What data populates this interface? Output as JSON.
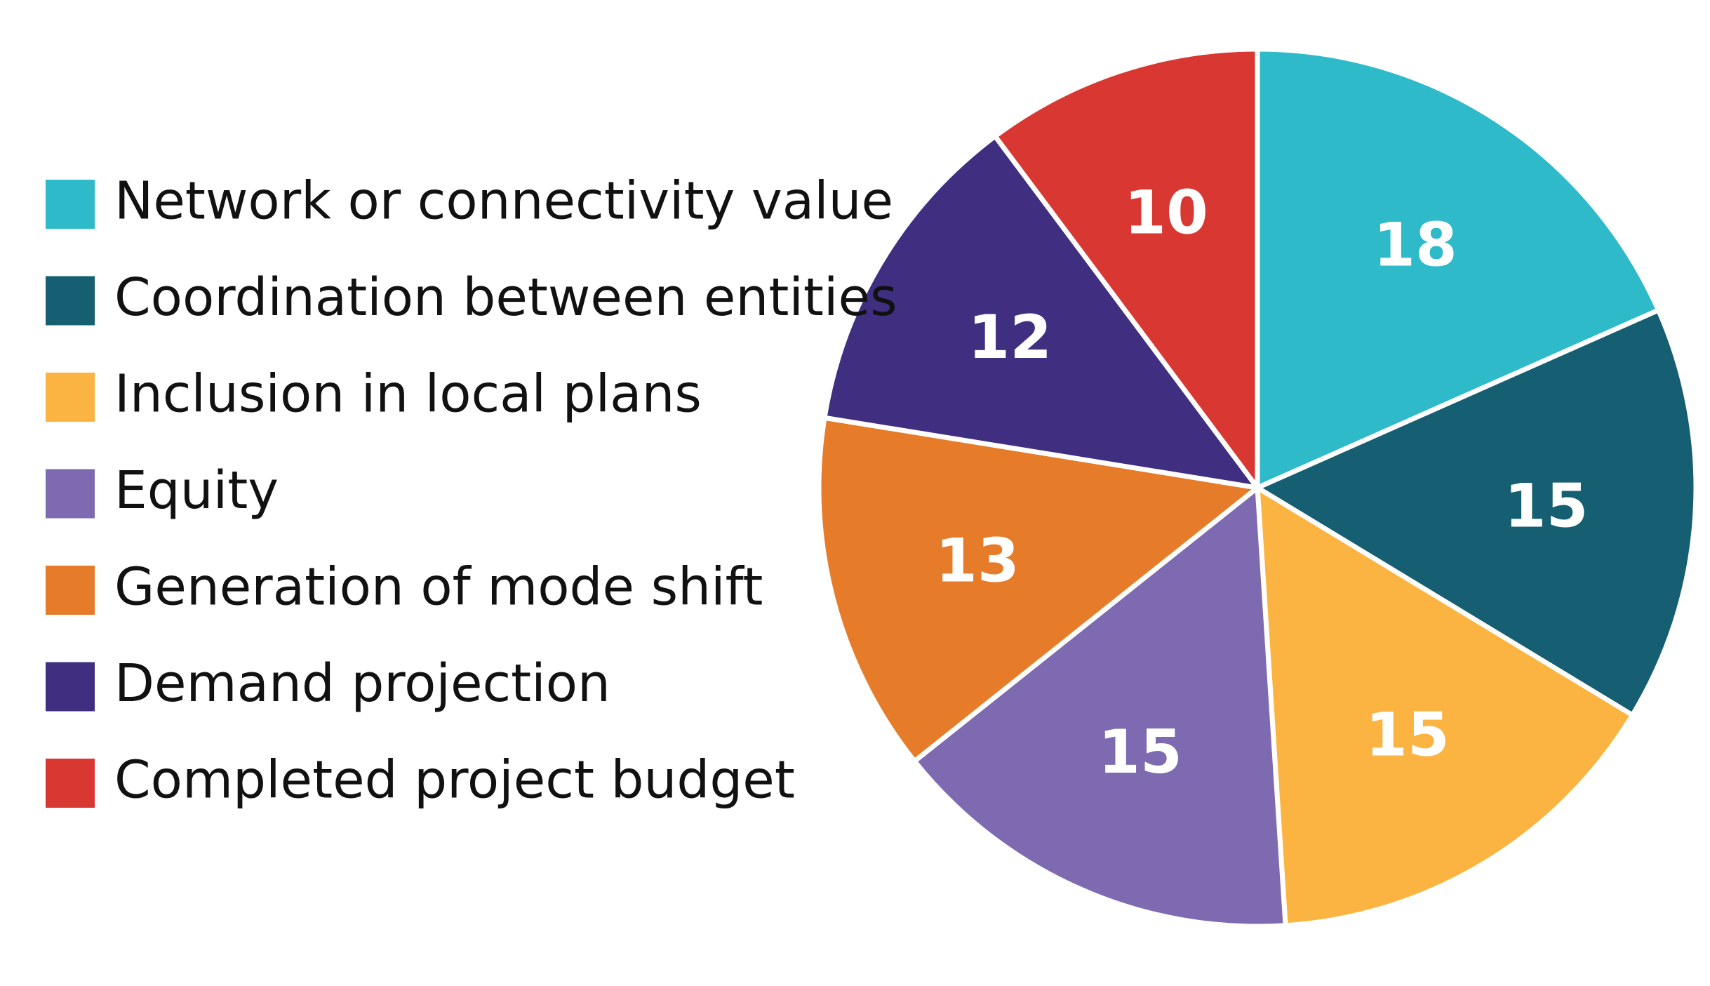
{
  "chart_data": {
    "type": "pie",
    "categories": [
      "Network or connectivity value",
      "Coordination between entities",
      "Inclusion in local plans",
      "Equity",
      "Generation of mode shift",
      "Demand projection",
      "Completed project budget"
    ],
    "values": [
      18,
      15,
      15,
      15,
      13,
      12,
      10
    ],
    "colors": [
      "#2fbaca",
      "#165e71",
      "#fbb441",
      "#7e6ab0",
      "#e67c2a",
      "#402f80",
      "#d93832"
    ],
    "legend": "left"
  }
}
